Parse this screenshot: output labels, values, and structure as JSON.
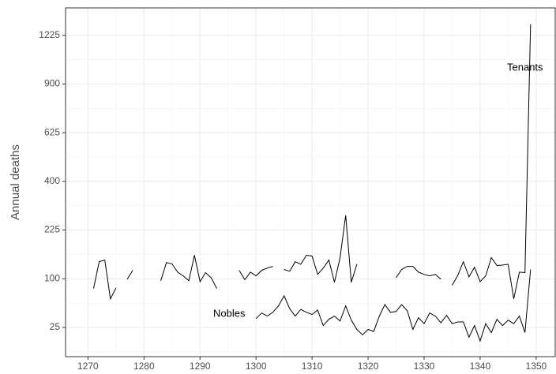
{
  "chart_data": {
    "type": "line",
    "y_label": "Annual deaths",
    "y_scale": "sqrt",
    "grid": true,
    "x": [
      1271,
      1272,
      1273,
      1274,
      1275,
      1276,
      1277,
      1278,
      1279,
      1280,
      1281,
      1282,
      1283,
      1284,
      1285,
      1286,
      1287,
      1288,
      1289,
      1290,
      1291,
      1292,
      1293,
      1294,
      1295,
      1296,
      1297,
      1298,
      1299,
      1300,
      1301,
      1302,
      1303,
      1304,
      1305,
      1306,
      1307,
      1308,
      1309,
      1310,
      1311,
      1312,
      1313,
      1314,
      1315,
      1316,
      1317,
      1318,
      1319,
      1320,
      1321,
      1322,
      1323,
      1324,
      1325,
      1326,
      1327,
      1328,
      1329,
      1330,
      1331,
      1332,
      1333,
      1334,
      1335,
      1336,
      1337,
      1338,
      1339,
      1340,
      1341,
      1342,
      1343,
      1344,
      1345,
      1346,
      1347,
      1348,
      1349
    ],
    "series": [
      {
        "name": "Tenants",
        "color": "#000000",
        "values": [
          81,
          138,
          142,
          63,
          82,
          null,
          99,
          118,
          null,
          null,
          null,
          null,
          96,
          136,
          133,
          114,
          106,
          96,
          154,
          94,
          113,
          102,
          81,
          null,
          null,
          null,
          118,
          98,
          114,
          106,
          118,
          123,
          127,
          null,
          120,
          116,
          138,
          132,
          154,
          152,
          109,
          123,
          142,
          93,
          148,
          273,
          93,
          132,
          null,
          null,
          null,
          null,
          null,
          null,
          102,
          120,
          127,
          127,
          114,
          109,
          106,
          109,
          99,
          null,
          87,
          107,
          138,
          104,
          125,
          94,
          106,
          148,
          129,
          130,
          132,
          63,
          114,
          113,
          1306
        ]
      },
      {
        "name": "Nobles",
        "color": "#000000",
        "values": [
          null,
          null,
          null,
          null,
          null,
          null,
          null,
          null,
          null,
          null,
          null,
          null,
          null,
          null,
          null,
          null,
          null,
          null,
          null,
          null,
          null,
          null,
          null,
          null,
          null,
          null,
          null,
          null,
          null,
          35,
          42,
          38,
          43,
          52,
          68,
          48,
          38,
          47,
          43,
          40,
          46,
          27,
          34,
          38,
          32,
          52,
          33,
          23,
          18,
          23,
          21,
          38,
          54,
          43,
          44,
          54,
          45,
          23,
          36,
          29,
          42,
          38,
          30,
          39,
          29,
          31,
          31,
          16,
          27,
          13,
          29,
          20,
          34,
          27,
          33,
          29,
          38,
          20,
          120
        ]
      }
    ],
    "xlim": [
      1266,
      1353.4
    ],
    "xticks": [
      1270,
      1280,
      1290,
      1300,
      1310,
      1320,
      1330,
      1340,
      1350
    ],
    "ylim": [
      4,
      1430
    ],
    "yticks": [
      25,
      100,
      225,
      400,
      625,
      900,
      1225
    ]
  }
}
